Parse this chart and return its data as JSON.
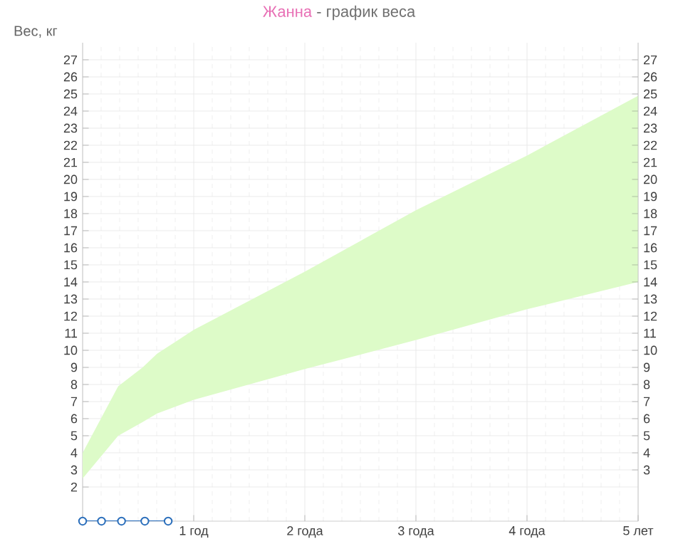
{
  "chart_data": {
    "type": "area",
    "title": "Жанна",
    "subtitle": "- график веса",
    "ylabel": "Вес, кг",
    "xlim": [
      0,
      5
    ],
    "xticks": [
      {
        "value": 0,
        "label": null
      },
      {
        "value": 1,
        "label": "1 год"
      },
      {
        "value": 2,
        "label": "2 года"
      },
      {
        "value": 3,
        "label": "3 года"
      },
      {
        "value": 4,
        "label": "4 года"
      },
      {
        "value": 5,
        "label": "5 лет"
      }
    ],
    "ylim": [
      0,
      28
    ],
    "yticks": [
      2,
      3,
      4,
      5,
      6,
      7,
      8,
      9,
      10,
      11,
      12,
      13,
      14,
      15,
      16,
      17,
      18,
      19,
      20,
      21,
      22,
      23,
      24,
      25,
      26,
      27
    ],
    "y2lim": [
      0,
      28
    ],
    "y2ticks": [
      3,
      4,
      5,
      6,
      7,
      8,
      9,
      10,
      11,
      12,
      13,
      14,
      15,
      16,
      17,
      18,
      19,
      20,
      21,
      22,
      23,
      24,
      25,
      26,
      27
    ],
    "grid": true,
    "series": [
      {
        "color": "#ddfbc8",
        "x": [
          0,
          0.32,
          0.54,
          0.67,
          1,
          2,
          3,
          4,
          5
        ],
        "values": [
          null,
          null,
          null,
          null,
          null,
          null,
          null,
          null,
          null
        ],
        "lower": [
          2.5,
          5.0,
          5.8,
          6.3,
          7.1,
          8.9,
          10.6,
          12.4,
          14.0
        ],
        "upper": [
          4.0,
          7.9,
          9.0,
          9.8,
          11.2,
          14.6,
          18.2,
          21.4,
          24.9
        ]
      },
      {
        "type": "line",
        "color": "#2a6ebb",
        "marker": "circle",
        "x": [
          0,
          0.17,
          0.35,
          0.56,
          0.77
        ],
        "values": [
          0,
          0,
          0,
          0,
          0
        ]
      }
    ]
  }
}
